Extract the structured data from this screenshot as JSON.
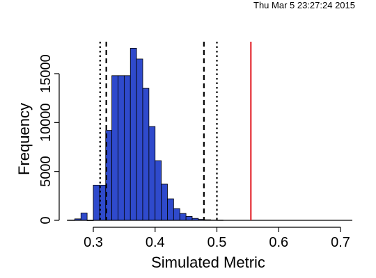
{
  "timestamp": "Thu Mar  5 23:27:24 2015",
  "chart_data": {
    "type": "bar",
    "xlabel": "Simulated Metric",
    "ylabel": "Frequency",
    "xlim": [
      0.26,
      0.72
    ],
    "ylim": [
      0,
      17500
    ],
    "x_ticks": [
      0.3,
      0.4,
      0.5,
      0.6,
      0.7
    ],
    "x_tick_labels": [
      "0.3",
      "0.4",
      "0.5",
      "0.6",
      "0.7"
    ],
    "y_ticks": [
      0,
      5000,
      10000,
      15000
    ],
    "y_tick_labels": [
      "0",
      "5000",
      "10000",
      "15000"
    ],
    "bins": [
      {
        "x0": 0.26,
        "x1": 0.27,
        "value": 20
      },
      {
        "x0": 0.27,
        "x1": 0.28,
        "value": 150
      },
      {
        "x0": 0.28,
        "x1": 0.29,
        "value": 750
      },
      {
        "x0": 0.29,
        "x1": 0.3,
        "value": 0
      },
      {
        "x0": 0.3,
        "x1": 0.31,
        "value": 3600
      },
      {
        "x0": 0.31,
        "x1": 0.32,
        "value": 3600
      },
      {
        "x0": 0.32,
        "x1": 0.33,
        "value": 9200
      },
      {
        "x0": 0.33,
        "x1": 0.34,
        "value": 14800
      },
      {
        "x0": 0.34,
        "x1": 0.35,
        "value": 14800
      },
      {
        "x0": 0.35,
        "x1": 0.36,
        "value": 14800
      },
      {
        "x0": 0.36,
        "x1": 0.37,
        "value": 17600
      },
      {
        "x0": 0.37,
        "x1": 0.38,
        "value": 16500
      },
      {
        "x0": 0.38,
        "x1": 0.39,
        "value": 13500
      },
      {
        "x0": 0.39,
        "x1": 0.4,
        "value": 9600
      },
      {
        "x0": 0.4,
        "x1": 0.41,
        "value": 6100
      },
      {
        "x0": 0.41,
        "x1": 0.42,
        "value": 3700
      },
      {
        "x0": 0.42,
        "x1": 0.43,
        "value": 2200
      },
      {
        "x0": 0.43,
        "x1": 0.44,
        "value": 1200
      },
      {
        "x0": 0.44,
        "x1": 0.45,
        "value": 700
      },
      {
        "x0": 0.45,
        "x1": 0.46,
        "value": 400
      },
      {
        "x0": 0.46,
        "x1": 0.47,
        "value": 200
      },
      {
        "x0": 0.47,
        "x1": 0.48,
        "value": 100
      },
      {
        "x0": 0.48,
        "x1": 0.49,
        "value": 60
      },
      {
        "x0": 0.49,
        "x1": 0.5,
        "value": 30
      },
      {
        "x0": 0.5,
        "x1": 0.51,
        "value": 20
      }
    ],
    "bar_color": "#2f4acc",
    "vlines": [
      {
        "x": 0.311,
        "style": "dotted",
        "color": "#000000"
      },
      {
        "x": 0.321,
        "style": "dashed",
        "color": "#000000"
      },
      {
        "x": 0.479,
        "style": "dashed",
        "color": "#000000"
      },
      {
        "x": 0.5,
        "style": "dotted",
        "color": "#000000"
      },
      {
        "x": 0.555,
        "style": "solid",
        "color": "#e0141e"
      }
    ],
    "grid": false
  }
}
